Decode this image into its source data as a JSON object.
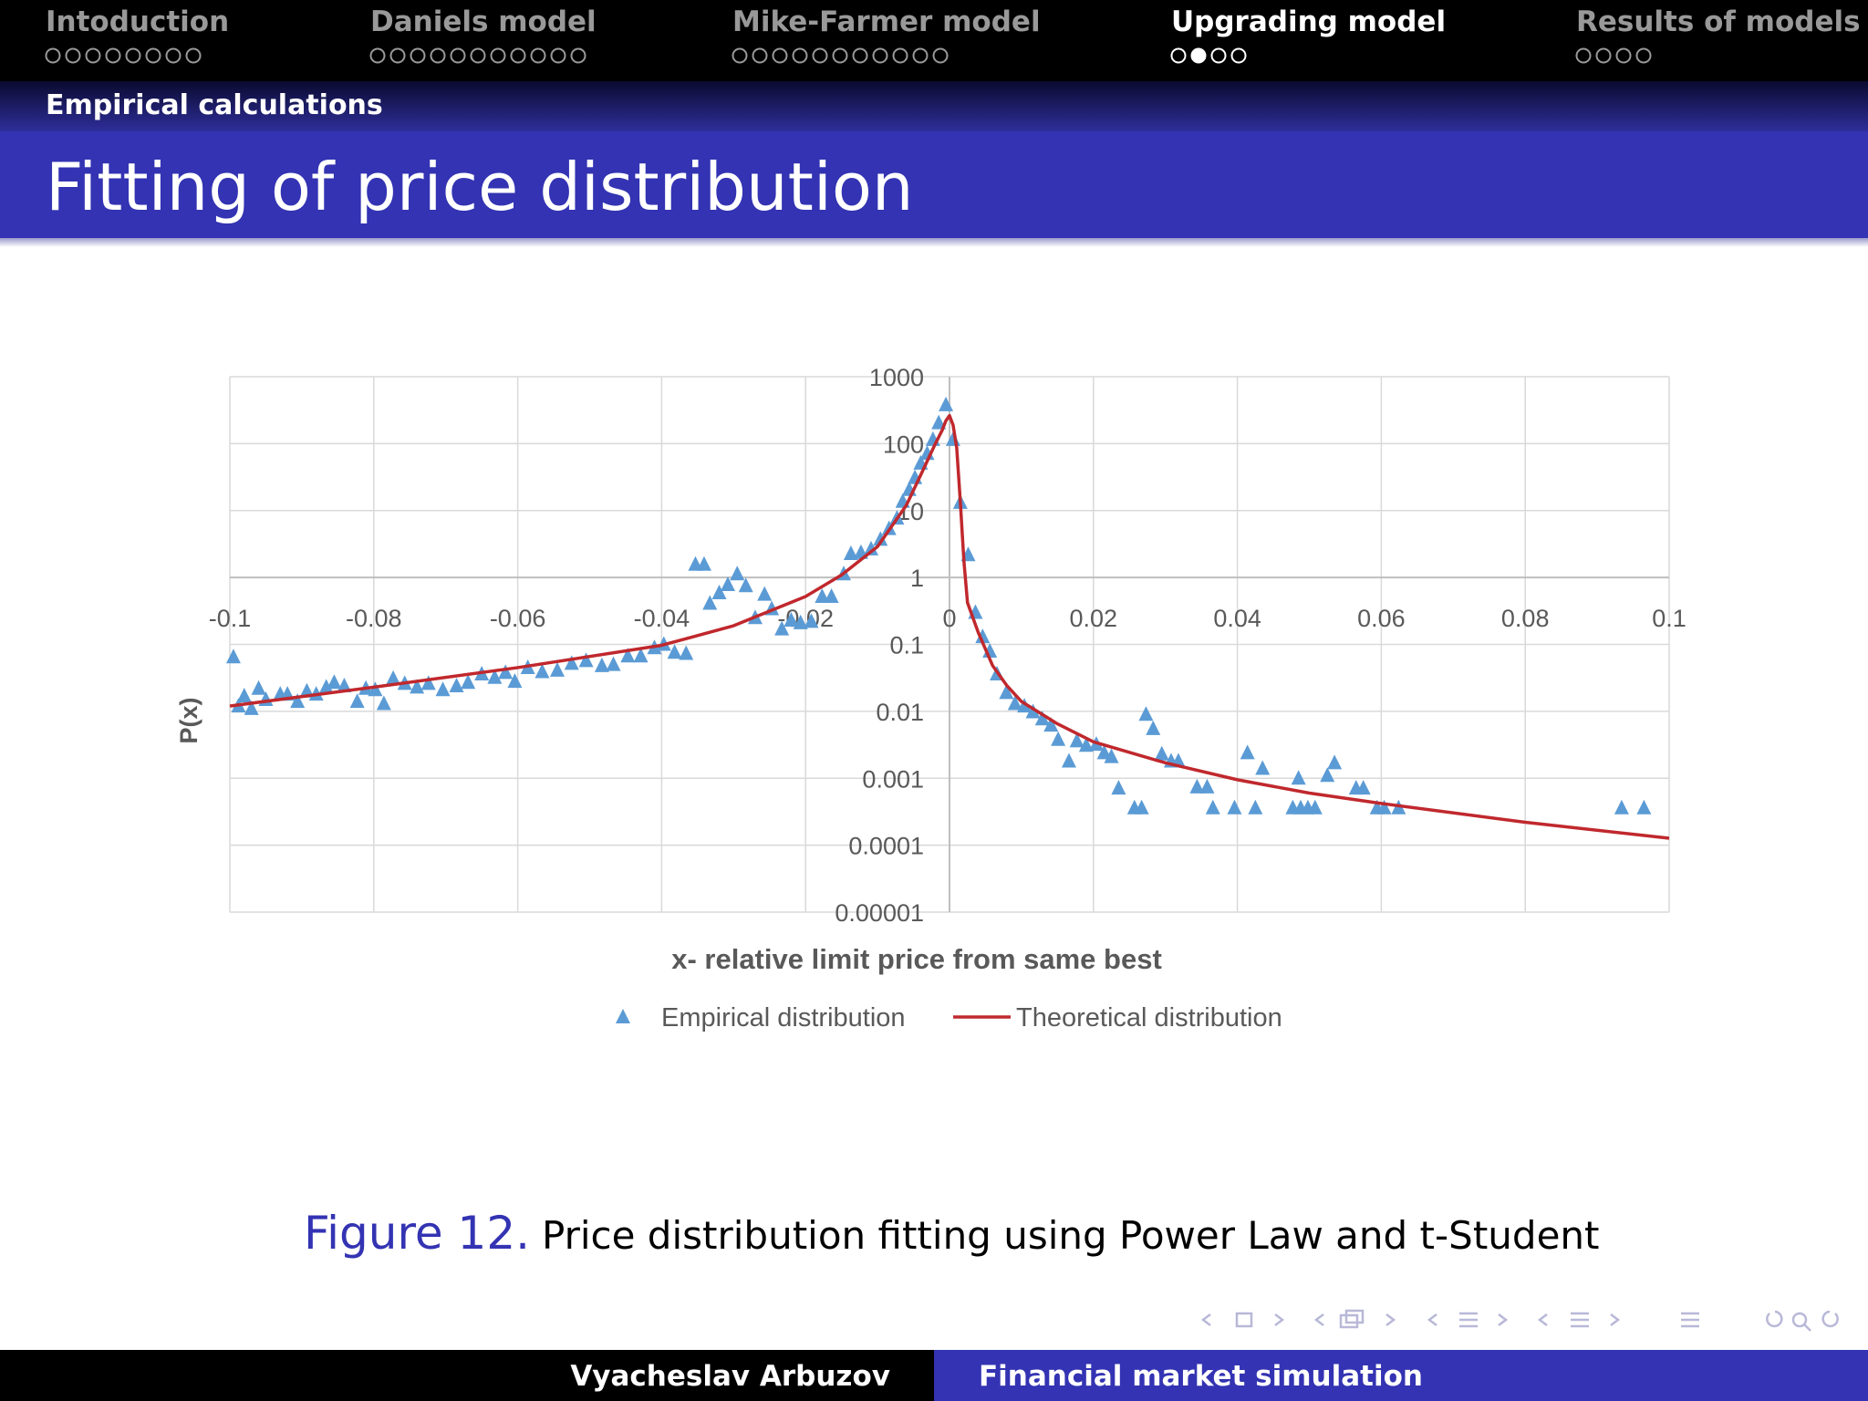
{
  "header": {
    "sections": [
      {
        "title": "Intoduction"
      },
      {
        "title": "Daniels model"
      },
      {
        "title": "Mike-Farmer model"
      },
      {
        "title": "Upgrading model",
        "active": true
      },
      {
        "title": "Results of models"
      }
    ],
    "subsection": "Empirical calculations"
  },
  "slide": {
    "title": "Fitting of price distribution"
  },
  "chart_data": {
    "type": "scatter",
    "xlabel": "x- relative limit price from same best",
    "ylabel": "P(x)",
    "xlim": [
      -0.1,
      0.1
    ],
    "ylim": [
      1e-05,
      1000
    ],
    "xticks": [
      -0.1,
      -0.08,
      -0.06,
      -0.04,
      -0.02,
      0,
      0.02,
      0.04,
      0.06,
      0.08,
      0.1
    ],
    "yticks": [
      1000,
      100,
      10,
      1,
      0.1,
      0.01,
      0.001,
      0.0001,
      1e-05
    ],
    "log_y": true,
    "grid": true,
    "x_axis_crosses_at": 1,
    "y_axis_crosses_at": 0,
    "legend": "bottom",
    "series": [
      {
        "name": "Empirical distribution",
        "type": "scatter",
        "marker": "triangle",
        "color": "#5b9bd5",
        "x": [
          -0.0995,
          -0.0988,
          -0.098,
          -0.097,
          -0.096,
          -0.095,
          -0.093,
          -0.092,
          -0.0906,
          -0.0893,
          -0.088,
          -0.0866,
          -0.0855,
          -0.0841,
          -0.0823,
          -0.0811,
          -0.0798,
          -0.0786,
          -0.0773,
          -0.0757,
          -0.074,
          -0.0724,
          -0.0704,
          -0.0685,
          -0.0669,
          -0.065,
          -0.0632,
          -0.0617,
          -0.0604,
          -0.0586,
          -0.0566,
          -0.0545,
          -0.0525,
          -0.0505,
          -0.0483,
          -0.0467,
          -0.0447,
          -0.0429,
          -0.041,
          -0.0397,
          -0.0382,
          -0.0366,
          -0.0353,
          -0.0341,
          -0.0333,
          -0.032,
          -0.0308,
          -0.0295,
          -0.0283,
          -0.027,
          -0.0257,
          -0.0247,
          -0.0233,
          -0.022,
          -0.0207,
          -0.0192,
          -0.0177,
          -0.0164,
          -0.0147,
          -0.0137,
          -0.0123,
          -0.0109,
          -0.0096,
          -0.0084,
          -0.0073,
          -0.0065,
          -0.0056,
          -0.0048,
          -0.004,
          -0.0031,
          -0.0023,
          -0.0015,
          -0.0005,
          0.0005,
          0.0015,
          0.0026,
          0.0036,
          0.0046,
          0.0056,
          0.0066,
          0.0079,
          0.0091,
          0.0104,
          0.0116,
          0.0129,
          0.0141,
          0.0151,
          0.0166,
          0.0177,
          0.019,
          0.0204,
          0.0215,
          0.0225,
          0.0235,
          0.0257,
          0.0267,
          0.0273,
          0.0283,
          0.0295,
          0.0308,
          0.0318,
          0.0344,
          0.0358,
          0.0366,
          0.0396,
          0.0414,
          0.0425,
          0.0435,
          0.0477,
          0.0488,
          0.0498,
          0.0508,
          0.0485,
          0.0525,
          0.0535,
          0.0565,
          0.0575,
          0.0594,
          0.0604,
          0.0624,
          0.0934,
          0.0965
        ],
        "values": [
          0.065,
          0.012,
          0.017,
          0.011,
          0.022,
          0.015,
          0.018,
          0.018,
          0.014,
          0.02,
          0.018,
          0.023,
          0.027,
          0.024,
          0.014,
          0.022,
          0.021,
          0.013,
          0.031,
          0.026,
          0.023,
          0.026,
          0.021,
          0.024,
          0.027,
          0.036,
          0.032,
          0.038,
          0.028,
          0.045,
          0.039,
          0.041,
          0.052,
          0.057,
          0.048,
          0.05,
          0.067,
          0.067,
          0.089,
          0.1,
          0.076,
          0.073,
          1.57,
          1.57,
          0.41,
          0.59,
          0.78,
          1.13,
          0.75,
          0.25,
          0.56,
          0.34,
          0.17,
          0.23,
          0.21,
          0.22,
          0.52,
          0.52,
          1.13,
          2.27,
          2.36,
          2.67,
          3.7,
          5.36,
          7.7,
          13.7,
          20.6,
          31,
          51,
          71,
          115,
          204,
          380,
          115,
          13.2,
          2.18,
          0.3,
          0.13,
          0.079,
          0.036,
          0.019,
          0.013,
          0.012,
          0.0098,
          0.0077,
          0.0062,
          0.0038,
          0.0018,
          0.0036,
          0.0031,
          0.0032,
          0.0024,
          0.0021,
          0.00071,
          0.00036,
          0.00036,
          0.009,
          0.0055,
          0.0023,
          0.0018,
          0.0018,
          0.00074,
          0.00074,
          0.00036,
          0.00036,
          0.0024,
          0.00036,
          0.0014,
          0.00036,
          0.00036,
          0.00036,
          0.00036,
          0.001,
          0.0011,
          0.0017,
          0.00071,
          0.00071,
          0.00036,
          0.00036,
          0.00036,
          0.00036,
          0.00036
        ]
      },
      {
        "name": "Theoretical distribution",
        "type": "line",
        "color": "#c0282d",
        "x": [
          -0.1,
          -0.08,
          -0.06,
          -0.04,
          -0.03,
          -0.02,
          -0.015,
          -0.01,
          -0.006,
          -0.004,
          -0.002,
          -0.001,
          -0.0005,
          0,
          0.0005,
          0.001,
          0.0015,
          0.002,
          0.0025,
          0.004,
          0.006,
          0.008,
          0.01,
          0.015,
          0.02,
          0.03,
          0.04,
          0.05,
          0.06,
          0.08,
          0.1
        ],
        "values": [
          0.012,
          0.023,
          0.045,
          0.097,
          0.19,
          0.52,
          1.09,
          2.9,
          12,
          34,
          98,
          160,
          220,
          262,
          189,
          87,
          13.7,
          1.77,
          0.42,
          0.15,
          0.048,
          0.024,
          0.014,
          0.0065,
          0.0035,
          0.0017,
          0.00095,
          0.0006,
          0.00042,
          0.00022,
          0.000127
        ]
      }
    ]
  },
  "caption": {
    "label": "Figure 12.",
    "text": "Price distribution fitting using Power Law and t-Student"
  },
  "footer": {
    "author": "Vyacheslav Arbuzov",
    "title": "Financial market simulation"
  }
}
